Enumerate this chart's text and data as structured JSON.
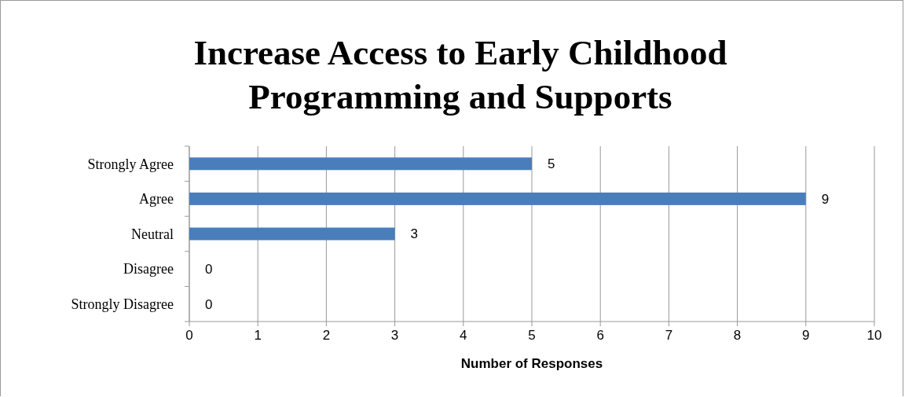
{
  "chart_data": {
    "type": "bar",
    "orientation": "horizontal",
    "title": "Increase Access to Early Childhood Programming and Supports",
    "xlabel": "Number of Responses",
    "categories": [
      "Strongly Agree",
      "Agree",
      "Neutral",
      "Disagree",
      "Strongly Disagree"
    ],
    "values": [
      5,
      9,
      3,
      0,
      0
    ],
    "color": "#4a7ebb",
    "xlim": [
      0,
      10
    ],
    "xticks": [
      0,
      1,
      2,
      3,
      4,
      5,
      6,
      7,
      8,
      9,
      10
    ],
    "grid": "x",
    "data_labels": true
  }
}
